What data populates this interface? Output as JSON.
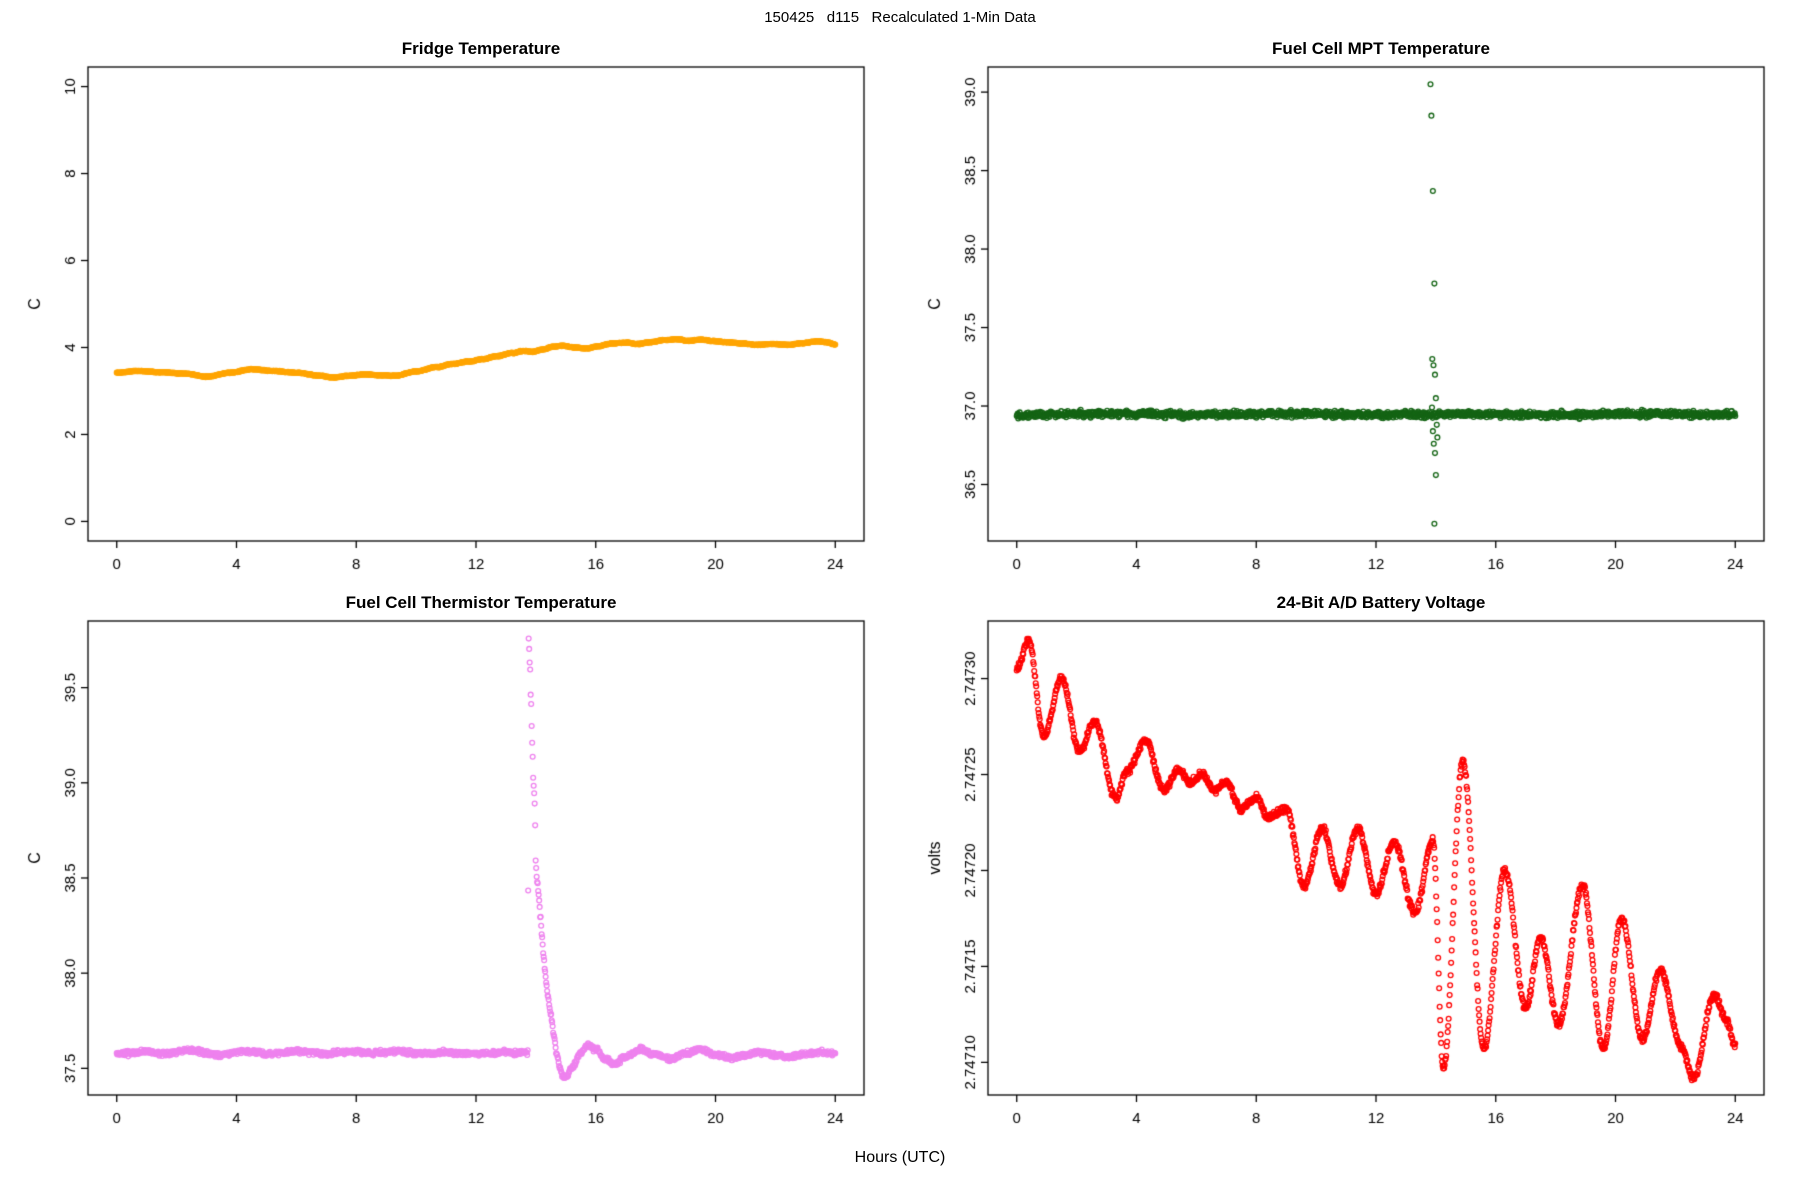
{
  "page": {
    "title": "150425   d115   Recalculated 1-Min Data",
    "xlabel": "Hours (UTC)",
    "background": "#ffffff"
  },
  "chart_data": [
    {
      "type": "scatter",
      "title": "Fridge Temperature",
      "ylabel": "C",
      "color": "#FFA500",
      "xlim": [
        -0.96,
        24.96
      ],
      "ylim": [
        -0.45,
        10.45
      ],
      "xticks": [
        0,
        4,
        8,
        12,
        16,
        20,
        24
      ],
      "xtick_labels": [
        "0",
        "4",
        "8",
        "12",
        "16",
        "20",
        "24"
      ],
      "yticks": [
        0,
        2,
        4,
        6,
        8,
        10
      ],
      "ytick_labels": [
        "0",
        "2",
        "4",
        "6",
        "8",
        "10"
      ],
      "n_points": 1440,
      "noise": 0.01,
      "point_radius": 2.4,
      "seed": 11,
      "grid": false,
      "keypoints": [
        [
          0,
          3.42
        ],
        [
          0.7,
          3.46
        ],
        [
          1.5,
          3.43
        ],
        [
          2.3,
          3.4
        ],
        [
          3.0,
          3.33
        ],
        [
          3.8,
          3.42
        ],
        [
          4.5,
          3.5
        ],
        [
          5.2,
          3.46
        ],
        [
          6.0,
          3.42
        ],
        [
          6.8,
          3.35
        ],
        [
          7.2,
          3.31
        ],
        [
          7.8,
          3.35
        ],
        [
          8.3,
          3.38
        ],
        [
          8.8,
          3.36
        ],
        [
          9.3,
          3.35
        ],
        [
          10.0,
          3.45
        ],
        [
          10.7,
          3.55
        ],
        [
          11.2,
          3.62
        ],
        [
          11.8,
          3.68
        ],
        [
          12.2,
          3.73
        ],
        [
          12.7,
          3.8
        ],
        [
          13.2,
          3.87
        ],
        [
          13.6,
          3.92
        ],
        [
          13.9,
          3.9
        ],
        [
          14.2,
          3.95
        ],
        [
          14.6,
          4.02
        ],
        [
          14.9,
          4.04
        ],
        [
          15.3,
          4.0
        ],
        [
          15.7,
          3.98
        ],
        [
          16.1,
          4.03
        ],
        [
          16.5,
          4.09
        ],
        [
          17.0,
          4.11
        ],
        [
          17.4,
          4.08
        ],
        [
          17.8,
          4.12
        ],
        [
          18.3,
          4.17
        ],
        [
          18.7,
          4.19
        ],
        [
          19.1,
          4.15
        ],
        [
          19.5,
          4.18
        ],
        [
          19.9,
          4.15
        ],
        [
          20.4,
          4.12
        ],
        [
          20.9,
          4.09
        ],
        [
          21.4,
          4.06
        ],
        [
          21.9,
          4.08
        ],
        [
          22.4,
          4.06
        ],
        [
          22.9,
          4.1
        ],
        [
          23.4,
          4.14
        ],
        [
          23.7,
          4.12
        ],
        [
          24,
          4.07
        ]
      ]
    },
    {
      "type": "scatter",
      "title": "Fuel Cell MPT Temperature",
      "ylabel": "C",
      "color": "#146414",
      "xlim": [
        -0.96,
        24.96
      ],
      "ylim": [
        36.14,
        39.16
      ],
      "xticks": [
        0,
        4,
        8,
        12,
        16,
        20,
        24
      ],
      "xtick_labels": [
        "0",
        "4",
        "8",
        "12",
        "16",
        "20",
        "24"
      ],
      "yticks": [
        36.5,
        37.0,
        37.5,
        38.0,
        38.5,
        39.0
      ],
      "ytick_labels": [
        "36.5",
        "37.0",
        "37.5",
        "38.0",
        "38.5",
        "39.0"
      ],
      "n_points": 1440,
      "noise": 0.02,
      "point_radius": 2.4,
      "seed": 22,
      "grid": false,
      "keypoints": [
        [
          0,
          36.945
        ],
        [
          3,
          36.95
        ],
        [
          6,
          36.945
        ],
        [
          9,
          36.95
        ],
        [
          12,
          36.945
        ],
        [
          15,
          36.948
        ],
        [
          18,
          36.945
        ],
        [
          21,
          36.95
        ],
        [
          24,
          36.945
        ]
      ],
      "outliers": [
        [
          13.82,
          39.05
        ],
        [
          13.85,
          38.85
        ],
        [
          13.9,
          38.37
        ],
        [
          13.95,
          37.78
        ],
        [
          13.88,
          37.3
        ],
        [
          13.92,
          37.26
        ],
        [
          13.97,
          37.2
        ],
        [
          14.0,
          37.05
        ],
        [
          13.87,
          36.99
        ],
        [
          14.03,
          36.88
        ],
        [
          13.9,
          36.84
        ],
        [
          14.05,
          36.8
        ],
        [
          13.93,
          36.76
        ],
        [
          13.97,
          36.7
        ],
        [
          14.0,
          36.56
        ],
        [
          13.95,
          36.25
        ]
      ]
    },
    {
      "type": "scatter",
      "title": "Fuel Cell Thermistor Temperature",
      "ylabel": "C",
      "color": "#EE82EE",
      "xlim": [
        -0.96,
        24.96
      ],
      "ylim": [
        37.36,
        39.85
      ],
      "xticks": [
        0,
        4,
        8,
        12,
        16,
        20,
        24
      ],
      "xtick_labels": [
        "0",
        "4",
        "8",
        "12",
        "16",
        "20",
        "24"
      ],
      "yticks": [
        37.5,
        38.0,
        38.5,
        39.0,
        39.5
      ],
      "ytick_labels": [
        "37.5",
        "38.0",
        "38.5",
        "39.0",
        "39.5"
      ],
      "n_points": 1440,
      "noise": 0.012,
      "point_radius": 2.4,
      "seed": 33,
      "grid": false,
      "keypoints": [
        [
          0,
          37.575
        ],
        [
          0.5,
          37.58
        ],
        [
          1,
          37.59
        ],
        [
          1.5,
          37.575
        ],
        [
          2,
          37.585
        ],
        [
          2.5,
          37.595
        ],
        [
          3,
          37.58
        ],
        [
          3.5,
          37.57
        ],
        [
          4,
          37.585
        ],
        [
          4.5,
          37.59
        ],
        [
          5,
          37.575
        ],
        [
          5.5,
          37.58
        ],
        [
          6,
          37.59
        ],
        [
          6.5,
          37.585
        ],
        [
          7,
          37.575
        ],
        [
          7.5,
          37.585
        ],
        [
          8,
          37.59
        ],
        [
          8.5,
          37.58
        ],
        [
          9,
          37.585
        ],
        [
          9.5,
          37.59
        ],
        [
          10,
          37.58
        ],
        [
          10.5,
          37.575
        ],
        [
          11,
          37.585
        ],
        [
          11.5,
          37.58
        ],
        [
          12,
          37.575
        ],
        [
          12.5,
          37.58
        ],
        [
          13,
          37.585
        ],
        [
          13.4,
          37.58
        ],
        [
          13.73,
          37.585
        ],
        [
          13.76,
          39.76
        ],
        [
          13.8,
          39.62
        ],
        [
          13.84,
          39.42
        ],
        [
          13.88,
          39.2
        ],
        [
          13.92,
          39.0
        ],
        [
          13.96,
          38.9
        ],
        [
          14.0,
          38.56
        ],
        [
          14.05,
          38.48
        ],
        [
          14.1,
          38.4
        ],
        [
          14.15,
          38.3
        ],
        [
          14.2,
          38.2
        ],
        [
          14.25,
          38.1
        ],
        [
          14.3,
          38.02
        ],
        [
          14.35,
          37.95
        ],
        [
          14.4,
          37.88
        ],
        [
          14.5,
          37.78
        ],
        [
          14.6,
          37.68
        ],
        [
          14.7,
          37.58
        ],
        [
          14.8,
          37.5
        ],
        [
          14.9,
          37.46
        ],
        [
          15.0,
          37.45
        ],
        [
          15.2,
          37.5
        ],
        [
          15.5,
          37.58
        ],
        [
          15.7,
          37.62
        ],
        [
          16.0,
          37.6
        ],
        [
          16.3,
          37.55
        ],
        [
          16.6,
          37.52
        ],
        [
          17,
          37.56
        ],
        [
          17.5,
          37.6
        ],
        [
          18,
          37.57
        ],
        [
          18.5,
          37.55
        ],
        [
          19,
          37.58
        ],
        [
          19.5,
          37.6
        ],
        [
          20,
          37.57
        ],
        [
          20.5,
          37.555
        ],
        [
          21,
          37.57
        ],
        [
          21.5,
          37.585
        ],
        [
          22,
          37.57
        ],
        [
          22.5,
          37.56
        ],
        [
          23,
          37.575
        ],
        [
          23.5,
          37.585
        ],
        [
          24,
          37.575
        ]
      ]
    },
    {
      "type": "scatter",
      "title": "24-Bit A/D Battery Voltage",
      "ylabel": "volts",
      "color": "#FF0000",
      "xlim": [
        -0.96,
        24.96
      ],
      "ylim": [
        2.747083,
        2.74733
      ],
      "xticks": [
        0,
        4,
        8,
        12,
        16,
        20,
        24
      ],
      "xtick_labels": [
        "0",
        "4",
        "8",
        "12",
        "16",
        "20",
        "24"
      ],
      "yticks": [
        2.7471,
        2.74715,
        2.7472,
        2.74725,
        2.7473
      ],
      "ytick_labels": [
        "2.74710",
        "2.74715",
        "2.74720",
        "2.74725",
        "2.74730"
      ],
      "n_points": 1440,
      "noise": 1.8e-06,
      "point_radius": 2.4,
      "seed": 44,
      "grid": false,
      "keypoints": [
        [
          0,
          2.747305
        ],
        [
          0.4,
          2.74732
        ],
        [
          0.9,
          2.74727
        ],
        [
          1.5,
          2.7473
        ],
        [
          2.1,
          2.747262
        ],
        [
          2.6,
          2.747278
        ],
        [
          3.3,
          2.747238
        ],
        [
          3.7,
          2.747252
        ],
        [
          4.3,
          2.747268
        ],
        [
          4.9,
          2.747242
        ],
        [
          5.4,
          2.747252
        ],
        [
          5.8,
          2.747246
        ],
        [
          6.2,
          2.74725
        ],
        [
          6.6,
          2.747242
        ],
        [
          7.0,
          2.747246
        ],
        [
          7.5,
          2.747232
        ],
        [
          8.0,
          2.747238
        ],
        [
          8.4,
          2.747228
        ],
        [
          9.0,
          2.747232
        ],
        [
          9.6,
          2.747192
        ],
        [
          10.2,
          2.747222
        ],
        [
          10.8,
          2.747192
        ],
        [
          11.4,
          2.747222
        ],
        [
          12.0,
          2.747188
        ],
        [
          12.6,
          2.747215
        ],
        [
          13.3,
          2.747178
        ],
        [
          13.9,
          2.747215
        ],
        [
          14.25,
          2.747097
        ],
        [
          14.9,
          2.747257
        ],
        [
          15.6,
          2.747107
        ],
        [
          16.3,
          2.7472
        ],
        [
          17.0,
          2.747128
        ],
        [
          17.5,
          2.747165
        ],
        [
          18.1,
          2.74712
        ],
        [
          18.9,
          2.747192
        ],
        [
          19.6,
          2.747107
        ],
        [
          20.2,
          2.747175
        ],
        [
          20.9,
          2.747112
        ],
        [
          21.5,
          2.747148
        ],
        [
          22.2,
          2.747108
        ],
        [
          22.6,
          2.747092
        ],
        [
          23.3,
          2.747135
        ],
        [
          23.7,
          2.747122
        ],
        [
          24,
          2.747108
        ]
      ]
    }
  ]
}
